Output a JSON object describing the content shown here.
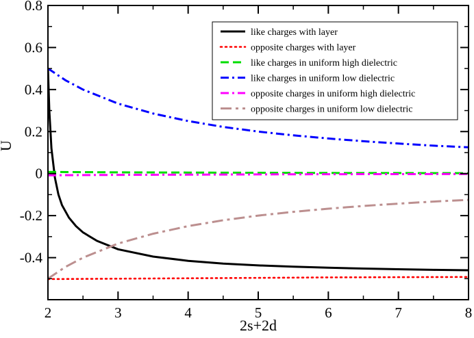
{
  "chart_data": {
    "type": "line",
    "title": "",
    "xlabel": "2s+2d",
    "ylabel": "U",
    "xlim": [
      2,
      8
    ],
    "ylim": [
      -0.6,
      0.8
    ],
    "x_ticks": [
      2,
      3,
      4,
      5,
      6,
      7,
      8
    ],
    "y_ticks": [
      0.8,
      0.6,
      0.4,
      0.2,
      0,
      -0.2,
      -0.4
    ],
    "x_tick_labels": [
      "2",
      "3",
      "4",
      "5",
      "6",
      "7",
      "8"
    ],
    "y_tick_labels": [
      "0.8",
      "0.6",
      "0.4",
      "0.2",
      "0",
      "-0.2",
      "-0.4"
    ],
    "grid": false,
    "legend_position": "top-right",
    "series": [
      {
        "name": "like charges with layer",
        "color": "#000000",
        "dash": "solid",
        "x": [
          2.0,
          2.02,
          2.05,
          2.1,
          2.15,
          2.2,
          2.3,
          2.4,
          2.5,
          2.7,
          3.0,
          3.5,
          4.0,
          4.5,
          5.0,
          5.5,
          6.0,
          6.5,
          7.0,
          7.5,
          8.0
        ],
        "y": [
          0.5,
          0.3,
          0.12,
          -0.02,
          -0.1,
          -0.15,
          -0.21,
          -0.25,
          -0.28,
          -0.32,
          -0.36,
          -0.395,
          -0.415,
          -0.428,
          -0.437,
          -0.443,
          -0.448,
          -0.452,
          -0.455,
          -0.458,
          -0.46
        ]
      },
      {
        "name": "opposite charges with layer",
        "color": "#ff0000",
        "dash": "dotted",
        "x": [
          2.0,
          3.0,
          4.0,
          5.0,
          6.0,
          7.0,
          8.0
        ],
        "y": [
          -0.502,
          -0.5,
          -0.498,
          -0.496,
          -0.494,
          -0.493,
          -0.492
        ]
      },
      {
        "name": "like charges in uniform high dielectric",
        "color": "#00dd00",
        "dash": "dashed",
        "x": [
          2.0,
          3.0,
          4.0,
          5.0,
          6.0,
          7.0,
          8.0
        ],
        "y": [
          0.008,
          0.006,
          0.005,
          0.004,
          0.003,
          0.0025,
          0.002
        ]
      },
      {
        "name": "like charges in uniform low dielectric",
        "color": "#0000ff",
        "dash": "dashdot",
        "x": [
          2.0,
          2.25,
          2.5,
          3.0,
          3.5,
          4.0,
          4.5,
          5.0,
          5.5,
          6.0,
          6.5,
          7.0,
          7.5,
          8.0
        ],
        "y": [
          0.5,
          0.444,
          0.4,
          0.333,
          0.286,
          0.25,
          0.222,
          0.2,
          0.182,
          0.167,
          0.154,
          0.143,
          0.133,
          0.125
        ]
      },
      {
        "name": "opposite charges in uniform high dielectric",
        "color": "#ff00ff",
        "dash": "dashdot",
        "x": [
          2.0,
          3.0,
          4.0,
          5.0,
          6.0,
          7.0,
          8.0
        ],
        "y": [
          -0.008,
          -0.006,
          -0.005,
          -0.004,
          -0.003,
          -0.0025,
          -0.002
        ]
      },
      {
        "name": "opposite charges in uniform low dielectric",
        "color": "#bc8f8f",
        "dash": "dashdot-long",
        "x": [
          2.0,
          2.25,
          2.5,
          3.0,
          3.5,
          4.0,
          4.5,
          5.0,
          5.5,
          6.0,
          6.5,
          7.0,
          7.5,
          8.0
        ],
        "y": [
          -0.5,
          -0.444,
          -0.4,
          -0.333,
          -0.286,
          -0.25,
          -0.222,
          -0.2,
          -0.182,
          -0.167,
          -0.154,
          -0.143,
          -0.133,
          -0.125
        ]
      }
    ]
  }
}
